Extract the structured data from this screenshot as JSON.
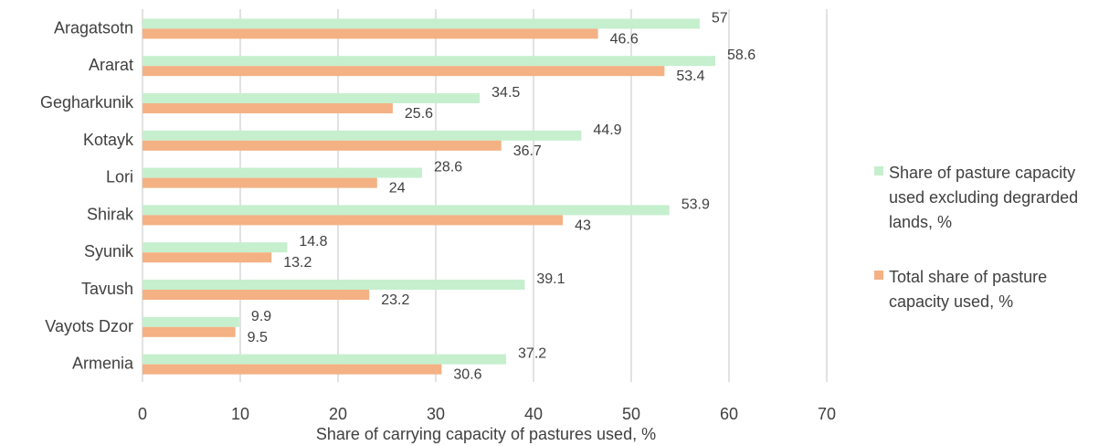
{
  "chart_data": {
    "type": "bar",
    "orientation": "horizontal",
    "categories": [
      "Aragatsotn",
      "Ararat",
      "Gegharkunik",
      "Kotayk",
      "Lori",
      "Shirak",
      "Syunik",
      "Tavush",
      "Vayots Dzor",
      "Armenia"
    ],
    "series": [
      {
        "name": "Share of pasture capacity used excluding degrarded lands, %",
        "values": [
          57,
          58.6,
          34.5,
          44.9,
          28.6,
          53.9,
          14.8,
          39.1,
          9.9,
          37.2
        ],
        "labels": [
          "57",
          "58.6",
          "34.5",
          "44.9",
          "28.6",
          "53.9",
          "14.8",
          "39.1",
          "9.9",
          "37.2"
        ],
        "color": "#c6efce"
      },
      {
        "name": "Total share of pasture capacity used, %",
        "values": [
          46.6,
          53.4,
          25.6,
          36.7,
          24,
          43,
          13.2,
          23.2,
          9.5,
          30.6
        ],
        "labels": [
          "46.6",
          "53.4",
          "25.6",
          "36.7",
          "24",
          "43",
          "13.2",
          "23.2",
          "9.5",
          "30.6"
        ],
        "color": "#f4b183"
      }
    ],
    "xlabel": "Share of carrying capacity of pastures used, %",
    "ylabel": "",
    "xlim": [
      0,
      70
    ],
    "xticks": [
      "0",
      "10",
      "20",
      "30",
      "40",
      "50",
      "60",
      "70"
    ],
    "grid": true,
    "legend_position": "right",
    "legend_lines": [
      [
        "Share of pasture capacity",
        "used excluding degrarded",
        "lands, %"
      ],
      [
        "Total share of pasture",
        "capacity used, %"
      ]
    ],
    "gridline_color": "#d9d9d9"
  }
}
